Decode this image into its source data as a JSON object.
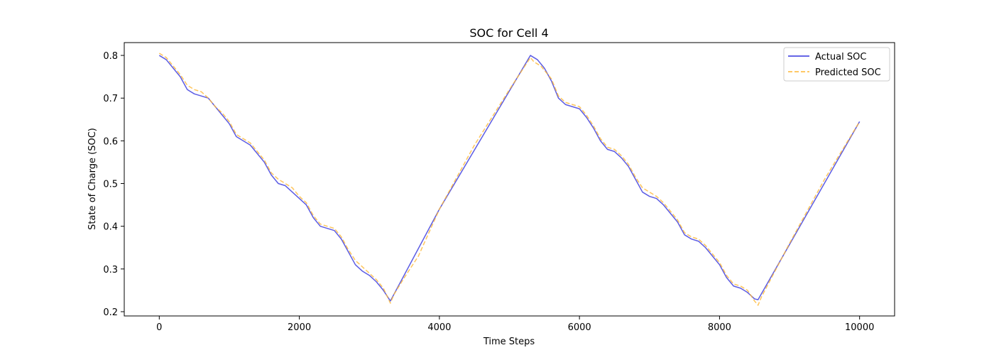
{
  "chart_data": {
    "type": "line",
    "title": "SOC for Cell 4",
    "xlabel": "Time Steps",
    "ylabel": "State of Charge (SOC)",
    "xlim": [
      -500,
      10500
    ],
    "ylim": [
      0.19,
      0.83
    ],
    "xticks": [
      0,
      2000,
      4000,
      6000,
      8000,
      10000
    ],
    "yticks": [
      0.2,
      0.3,
      0.4,
      0.5,
      0.6,
      0.7,
      0.8
    ],
    "legend_position": "top-right",
    "grid": false,
    "series": [
      {
        "name": "Actual SOC",
        "color": "#3333dd",
        "style": "solid",
        "points": [
          [
            0,
            0.8
          ],
          [
            100,
            0.79
          ],
          [
            200,
            0.77
          ],
          [
            300,
            0.75
          ],
          [
            400,
            0.72
          ],
          [
            500,
            0.71
          ],
          [
            600,
            0.705
          ],
          [
            700,
            0.7
          ],
          [
            800,
            0.68
          ],
          [
            900,
            0.66
          ],
          [
            1000,
            0.64
          ],
          [
            1100,
            0.61
          ],
          [
            1200,
            0.6
          ],
          [
            1300,
            0.59
          ],
          [
            1400,
            0.57
          ],
          [
            1500,
            0.55
          ],
          [
            1600,
            0.52
          ],
          [
            1700,
            0.5
          ],
          [
            1800,
            0.495
          ],
          [
            1900,
            0.48
          ],
          [
            2000,
            0.465
          ],
          [
            2100,
            0.45
          ],
          [
            2200,
            0.42
          ],
          [
            2300,
            0.4
          ],
          [
            2400,
            0.395
          ],
          [
            2500,
            0.39
          ],
          [
            2600,
            0.37
          ],
          [
            2700,
            0.34
          ],
          [
            2800,
            0.31
          ],
          [
            2900,
            0.295
          ],
          [
            3000,
            0.285
          ],
          [
            3100,
            0.27
          ],
          [
            3200,
            0.25
          ],
          [
            3300,
            0.225
          ],
          [
            4000,
            0.44
          ],
          [
            5300,
            0.8
          ],
          [
            5400,
            0.79
          ],
          [
            5500,
            0.77
          ],
          [
            5600,
            0.74
          ],
          [
            5700,
            0.7
          ],
          [
            5800,
            0.685
          ],
          [
            5900,
            0.68
          ],
          [
            6000,
            0.675
          ],
          [
            6100,
            0.655
          ],
          [
            6200,
            0.63
          ],
          [
            6300,
            0.6
          ],
          [
            6400,
            0.58
          ],
          [
            6500,
            0.575
          ],
          [
            6600,
            0.56
          ],
          [
            6700,
            0.54
          ],
          [
            6800,
            0.51
          ],
          [
            6900,
            0.48
          ],
          [
            7000,
            0.47
          ],
          [
            7100,
            0.465
          ],
          [
            7200,
            0.45
          ],
          [
            7300,
            0.43
          ],
          [
            7400,
            0.41
          ],
          [
            7500,
            0.38
          ],
          [
            7600,
            0.37
          ],
          [
            7700,
            0.365
          ],
          [
            7800,
            0.35
          ],
          [
            7900,
            0.33
          ],
          [
            8000,
            0.31
          ],
          [
            8100,
            0.28
          ],
          [
            8200,
            0.26
          ],
          [
            8300,
            0.255
          ],
          [
            8400,
            0.245
          ],
          [
            8500,
            0.23
          ],
          [
            8550,
            0.228
          ],
          [
            10000,
            0.645
          ]
        ]
      },
      {
        "name": "Predicted SOC",
        "color": "#ffb733",
        "style": "dashed",
        "points": [
          [
            0,
            0.805
          ],
          [
            50,
            0.8
          ],
          [
            100,
            0.795
          ],
          [
            200,
            0.775
          ],
          [
            300,
            0.755
          ],
          [
            400,
            0.73
          ],
          [
            450,
            0.725
          ],
          [
            500,
            0.72
          ],
          [
            600,
            0.715
          ],
          [
            700,
            0.7
          ],
          [
            800,
            0.68
          ],
          [
            900,
            0.665
          ],
          [
            1000,
            0.645
          ],
          [
            1100,
            0.615
          ],
          [
            1200,
            0.605
          ],
          [
            1300,
            0.595
          ],
          [
            1400,
            0.575
          ],
          [
            1500,
            0.555
          ],
          [
            1600,
            0.525
          ],
          [
            1700,
            0.51
          ],
          [
            1750,
            0.505
          ],
          [
            1800,
            0.5
          ],
          [
            1900,
            0.49
          ],
          [
            2000,
            0.47
          ],
          [
            2100,
            0.455
          ],
          [
            2200,
            0.425
          ],
          [
            2300,
            0.405
          ],
          [
            2400,
            0.4
          ],
          [
            2500,
            0.395
          ],
          [
            2600,
            0.375
          ],
          [
            2700,
            0.345
          ],
          [
            2800,
            0.32
          ],
          [
            2900,
            0.305
          ],
          [
            3000,
            0.29
          ],
          [
            3100,
            0.275
          ],
          [
            3200,
            0.255
          ],
          [
            3300,
            0.22
          ],
          [
            3350,
            0.24
          ],
          [
            3500,
            0.28
          ],
          [
            3700,
            0.33
          ],
          [
            4000,
            0.44
          ],
          [
            4500,
            0.59
          ],
          [
            5000,
            0.72
          ],
          [
            5300,
            0.795
          ],
          [
            5350,
            0.785
          ],
          [
            5450,
            0.775
          ],
          [
            5600,
            0.745
          ],
          [
            5700,
            0.705
          ],
          [
            5800,
            0.69
          ],
          [
            5900,
            0.685
          ],
          [
            6000,
            0.68
          ],
          [
            6100,
            0.66
          ],
          [
            6200,
            0.635
          ],
          [
            6300,
            0.605
          ],
          [
            6400,
            0.585
          ],
          [
            6500,
            0.58
          ],
          [
            6600,
            0.565
          ],
          [
            6700,
            0.545
          ],
          [
            6800,
            0.515
          ],
          [
            6900,
            0.49
          ],
          [
            7000,
            0.48
          ],
          [
            7100,
            0.47
          ],
          [
            7200,
            0.455
          ],
          [
            7300,
            0.435
          ],
          [
            7400,
            0.415
          ],
          [
            7500,
            0.385
          ],
          [
            7600,
            0.375
          ],
          [
            7700,
            0.37
          ],
          [
            7800,
            0.355
          ],
          [
            7900,
            0.335
          ],
          [
            8000,
            0.315
          ],
          [
            8100,
            0.285
          ],
          [
            8200,
            0.265
          ],
          [
            8300,
            0.26
          ],
          [
            8400,
            0.25
          ],
          [
            8500,
            0.225
          ],
          [
            8550,
            0.215
          ],
          [
            8600,
            0.235
          ],
          [
            9000,
            0.36
          ],
          [
            9500,
            0.51
          ],
          [
            10000,
            0.645
          ]
        ]
      }
    ]
  }
}
